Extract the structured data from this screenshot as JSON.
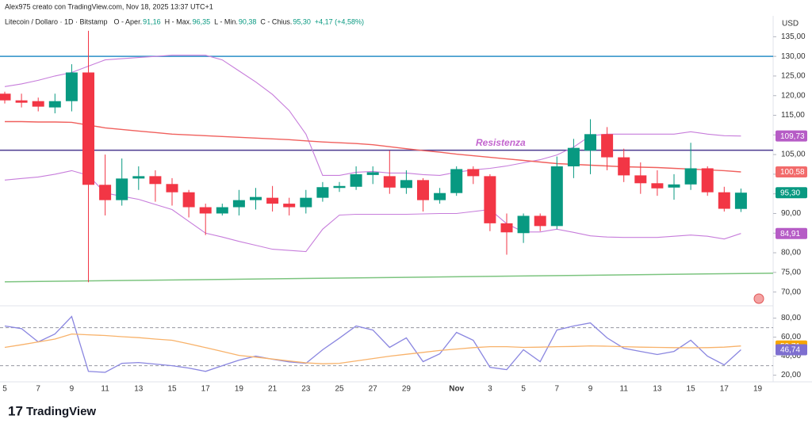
{
  "header": {
    "credit": "Alex975 creato con TradingView.com, Nov 18, 2025 13:37 UTC+1",
    "symbol": "Litecoin / Dollaro · 1D · Bitstamp",
    "ohlc": [
      {
        "label": "O - Aper.",
        "text": "91,16"
      },
      {
        "label": "H - Max.",
        "text": "96,35"
      },
      {
        "label": "L - Min.",
        "text": "90,38"
      },
      {
        "label": "C - Chius.",
        "text": "95,30"
      }
    ],
    "change": "+4,17 (+4,58%)",
    "currency": "USD",
    "brand": "TradingView"
  },
  "chart_data": [
    {
      "type": "candlestick",
      "up_color": "#089981",
      "down_color": "#f23645",
      "categories": [
        "5",
        null,
        "7",
        null,
        "9",
        null,
        "11",
        null,
        "13",
        null,
        "15",
        null,
        "17",
        null,
        "19",
        null,
        "21",
        null,
        "23",
        null,
        "25",
        null,
        "27",
        null,
        "29",
        null,
        null,
        "Nov",
        null,
        "3",
        null,
        "5",
        null,
        "7",
        null,
        "9",
        null,
        "11",
        null,
        "13",
        null,
        "15",
        null,
        "17",
        null,
        "19"
      ],
      "open": [
        120.5,
        118.8,
        118.6,
        117,
        118.6,
        125.9,
        97.3,
        93.4,
        98.9,
        99.5,
        97.5,
        95.4,
        91.6,
        90,
        91.6,
        93.4,
        94,
        92.5,
        91.6,
        94,
        96.5,
        96.8,
        99.8,
        99.5,
        96.5,
        98.5,
        93.4,
        95.2,
        101.3,
        99.5,
        87.5,
        85,
        89.4,
        86.8,
        102,
        106,
        110.2,
        104.3,
        99.7,
        97.7,
        96.6,
        97.4,
        101.5,
        95.4,
        91.16,
        null
      ],
      "high": [
        121,
        120.5,
        119.5,
        120.5,
        128,
        136.5,
        105,
        104,
        102,
        101,
        99,
        96,
        92.5,
        92.5,
        96,
        96.5,
        97,
        94,
        96,
        98,
        98,
        102,
        102,
        106,
        101,
        99,
        96.5,
        102,
        102,
        100,
        90,
        90,
        90,
        104.5,
        109,
        114,
        112,
        106.5,
        103,
        101,
        100,
        108,
        102,
        96.8,
        96.35,
        null
      ],
      "low": [
        118,
        117,
        116,
        115.5,
        116,
        72.5,
        89.5,
        92,
        96,
        93,
        92,
        89,
        84.5,
        89.5,
        89.5,
        91,
        90.5,
        89.5,
        90,
        93,
        95.5,
        96,
        97.5,
        95,
        95,
        90.5,
        92.5,
        94.5,
        97.5,
        85.5,
        79.5,
        82.5,
        85.5,
        86,
        99,
        100,
        101,
        98,
        95,
        94.5,
        93.5,
        96,
        94.5,
        90.5,
        90.38,
        null
      ],
      "close": [
        118.8,
        118.2,
        117.2,
        118.6,
        125.9,
        97.3,
        93.4,
        98.9,
        99.5,
        97.5,
        95.4,
        91.6,
        90,
        91.6,
        93.4,
        94.2,
        92.5,
        91.6,
        94,
        96.7,
        97,
        100,
        100.5,
        96.6,
        98.5,
        93.4,
        95.2,
        101.3,
        99.5,
        87.5,
        85.2,
        89.4,
        86.8,
        102,
        106.7,
        110.2,
        104.3,
        99.7,
        97.7,
        96.4,
        97.4,
        101.5,
        95.4,
        91.2,
        95.3,
        null
      ],
      "overlays": [
        {
          "color": "#c77ddb",
          "values": [
            122.3,
            123,
            123.9,
            125,
            125.9,
            127.5,
            129.1,
            129.4,
            129.7,
            130,
            130.3,
            130.3,
            130.3,
            129.1,
            126.3,
            123.5,
            120.3,
            116.2,
            110.2,
            99.7,
            99.7,
            100.5,
            100.7,
            100.3,
            100.3,
            99.9,
            99.7,
            100.5,
            101.1,
            101.5,
            102.1,
            102.9,
            103.7,
            104.9,
            106.9,
            109.8,
            110.2,
            110.2,
            110.2,
            110.2,
            110.2,
            110.8,
            110.2,
            109.8,
            109.73,
            null
          ]
        },
        {
          "color": "#c77ddb",
          "values": [
            98.5,
            98.9,
            99.3,
            100,
            100.9,
            99.7,
            95.2,
            94.4,
            93.6,
            92.3,
            91,
            88,
            85,
            84,
            82.9,
            81.9,
            80.9,
            80.6,
            80.3,
            86,
            89.6,
            89.8,
            89.8,
            89.8,
            89.8,
            89.9,
            90,
            90,
            90.5,
            91,
            87.4,
            85.3,
            85.3,
            86,
            85.2,
            84.3,
            84,
            83.9,
            83.9,
            83.9,
            84.2,
            84.5,
            84.2,
            83.5,
            84.91,
            null
          ]
        },
        {
          "color": "#f0605d",
          "values": [
            113.4,
            113.4,
            113.3,
            113.3,
            113.2,
            112.5,
            111.8,
            111.4,
            111,
            110.6,
            110.2,
            110,
            109.8,
            109.6,
            109.4,
            109.2,
            109,
            108.8,
            108.5,
            108.2,
            108,
            107.8,
            107.5,
            107,
            106.5,
            106,
            105.6,
            105.1,
            104.7,
            104.3,
            103.9,
            103.5,
            103.1,
            102.7,
            102.5,
            102.3,
            102.1,
            101.9,
            101.8,
            101.7,
            101.5,
            101.3,
            101.1,
            100.9,
            100.58,
            null
          ]
        }
      ],
      "levels": [
        {
          "value": 130,
          "color": "#2a8fc7"
        },
        {
          "value": 106.1,
          "color": "#4b3a8f",
          "label": "Resistenza",
          "label_color": "#c466cf"
        }
      ],
      "trendline": {
        "color": "#7cc47f",
        "values": [
          72.6,
          74.8
        ]
      },
      "price_labels": [
        {
          "value": 109.73,
          "label": "109,73",
          "color": "#b65cc6"
        },
        {
          "value": 100.58,
          "label": "100,58",
          "color": "#f26b6b"
        },
        {
          "value": 95.3,
          "label": "95,30",
          "color": "#089981"
        },
        {
          "value": 84.91,
          "label": "84,91",
          "color": "#b65cc6"
        }
      ],
      "ylim": [
        66.7,
        138.3
      ],
      "yticks": [
        {
          "value": 70,
          "label": "70,00"
        },
        {
          "value": 75,
          "label": "75,00"
        },
        {
          "value": 80,
          "label": "80,00"
        },
        {
          "value": 85,
          "label": "85,00"
        },
        {
          "value": 90,
          "label": "90,00"
        },
        {
          "value": 95,
          "label": "95,00"
        },
        {
          "value": 100,
          "label": "100,00"
        },
        {
          "value": 105,
          "label": "105,00"
        },
        {
          "value": 110,
          "label": "110,00"
        },
        {
          "value": 115,
          "label": "115,00"
        },
        {
          "value": 120,
          "label": "120,00"
        },
        {
          "value": 125,
          "label": "125,00"
        },
        {
          "value": 130,
          "label": "130,00"
        },
        {
          "value": 135,
          "label": "135,00"
        }
      ]
    },
    {
      "type": "line",
      "series": [
        {
          "color": "#8a86e0",
          "values": [
            71.7,
            69,
            55,
            63.3,
            81.7,
            24,
            23,
            32.5,
            33.3,
            31.7,
            30,
            27.5,
            24,
            30,
            35.8,
            40,
            36.7,
            34,
            32.5,
            46.7,
            59,
            71.7,
            67.5,
            49.2,
            59.2,
            34.2,
            42.5,
            65,
            56.7,
            28.3,
            25.8,
            46.7,
            34.2,
            67.5,
            71.7,
            75,
            59.2,
            48.3,
            45,
            41.7,
            45,
            56.7,
            40,
            30.8,
            46.74,
            null
          ]
        },
        {
          "color": "#f8b26a",
          "values": [
            49.2,
            52,
            55,
            58,
            63.3,
            62.5,
            61.7,
            60.5,
            59.5,
            58,
            56.7,
            53,
            49,
            45,
            40.8,
            39,
            37,
            35,
            33,
            32,
            32.5,
            35,
            37.5,
            40,
            42,
            44,
            46,
            47.5,
            49,
            50,
            50,
            49.2,
            49.5,
            50,
            50.2,
            50.8,
            50.5,
            50,
            49.5,
            49.2,
            49,
            48.8,
            49,
            49.5,
            50.71,
            null
          ]
        }
      ],
      "levels": [
        70,
        30
      ],
      "price_labels": [
        {
          "value": 50.71,
          "label": "50,71",
          "color": "#f7a600"
        },
        {
          "value": 46.74,
          "label": "46,74",
          "color": "#7e6fd0"
        }
      ],
      "ylim": [
        13,
        91.3
      ],
      "yticks": [
        {
          "value": 20,
          "label": "20,00"
        },
        {
          "value": 40,
          "label": "40,00"
        },
        {
          "value": 60,
          "label": "60,00"
        },
        {
          "value": 80,
          "label": "80,00"
        }
      ]
    }
  ]
}
